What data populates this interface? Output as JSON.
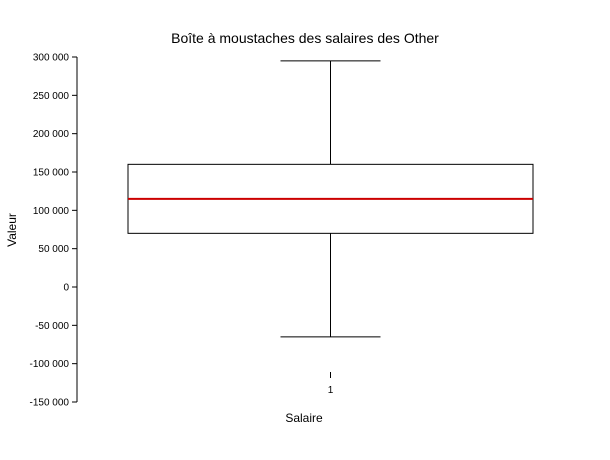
{
  "chart_data": {
    "type": "boxplot",
    "title": "Boîte à moustaches des salaires des Other",
    "xlabel": "Salaire",
    "ylabel": "Valeur",
    "ylim": [
      -150000,
      300000
    ],
    "y_ticks": [
      300000,
      250000,
      200000,
      150000,
      100000,
      50000,
      0,
      -50000,
      -100000,
      -150000
    ],
    "y_tick_labels": [
      "300 000",
      "250 000",
      "200 000",
      "150 000",
      "100 000",
      "50 000",
      "0",
      "-50 000",
      "-100 000",
      "-150 000"
    ],
    "categories": [
      "1"
    ],
    "series": [
      {
        "whisker_low": -65000,
        "q1": 70000,
        "median": 115000,
        "q3": 160000,
        "whisker_high": 295000
      }
    ],
    "grid": false,
    "colors": {
      "median": "#cc0000",
      "box": "#000000",
      "whisker": "#000000"
    }
  }
}
